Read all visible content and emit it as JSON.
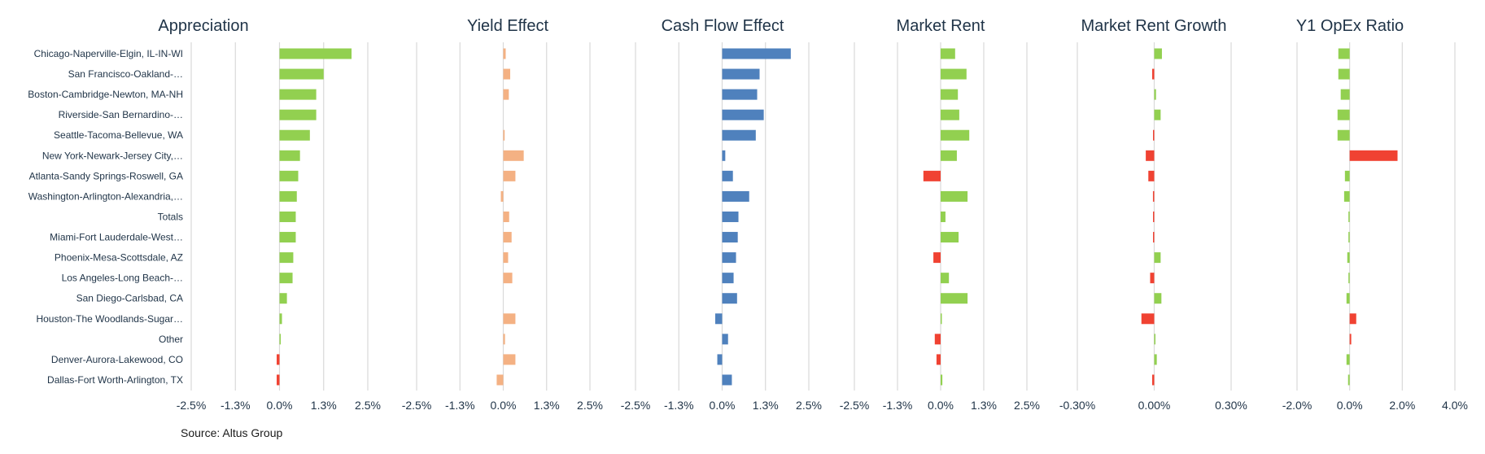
{
  "chart_data": {
    "type": "bar",
    "orientation": "horizontal",
    "source": "Source: Altus Group",
    "categories": [
      "Chicago-Naperville-Elgin, IL-IN-WI",
      "San Francisco-Oakland-…",
      "Boston-Cambridge-Newton, MA-NH",
      "Riverside-San Bernardino-…",
      "Seattle-Tacoma-Bellevue, WA",
      "New York-Newark-Jersey City,…",
      "Atlanta-Sandy Springs-Roswell, GA",
      "Washington-Arlington-Alexandria,…",
      "Totals",
      "Miami-Fort Lauderdale-West…",
      "Phoenix-Mesa-Scottsdale, AZ",
      "Los Angeles-Long Beach-…",
      "San Diego-Carlsbad, CA",
      "Houston-The Woodlands-Sugar…",
      "Other",
      "Denver-Aurora-Lakewood, CO",
      "Dallas-Fort Worth-Arlington, TX"
    ],
    "colors": {
      "positive_green": "#92d050",
      "negative_red": "#f04232",
      "yield_orange": "#f4b183",
      "cashflow_blue": "#4f81bd",
      "gridline": "#d9d9d9",
      "text": "#1f3347"
    },
    "panels": [
      {
        "title": "Appreciation",
        "unit": "%",
        "xlim": [
          -2.5,
          2.5
        ],
        "ticks": [
          -2.5,
          -1.25,
          0,
          1.25,
          2.5
        ],
        "tick_labels": [
          "-2.5%",
          "-1.3%",
          "0.0%",
          "1.3%",
          "2.5%"
        ],
        "color_mode": "sign",
        "values": [
          2.04,
          1.25,
          1.04,
          1.04,
          0.86,
          0.58,
          0.53,
          0.49,
          0.46,
          0.46,
          0.39,
          0.37,
          0.21,
          0.07,
          0.03,
          -0.08,
          -0.08
        ]
      },
      {
        "title": "Yield Effect",
        "unit": "%",
        "xlim": [
          -2.5,
          2.5
        ],
        "ticks": [
          -2.5,
          -1.25,
          0,
          1.25,
          2.5
        ],
        "tick_labels": [
          "-2.5%",
          "-1.3%",
          "0.0%",
          "1.3%",
          "2.5%"
        ],
        "color_mode": "yield",
        "values": [
          0.07,
          0.2,
          0.16,
          0.0,
          0.04,
          0.59,
          0.35,
          -0.07,
          0.17,
          0.24,
          0.14,
          0.26,
          0.0,
          0.35,
          0.05,
          0.35,
          -0.19
        ]
      },
      {
        "title": "Cash Flow Effect",
        "unit": "%",
        "xlim": [
          -2.5,
          2.5
        ],
        "ticks": [
          -2.5,
          -1.25,
          0,
          1.25,
          2.5
        ],
        "tick_labels": [
          "-2.5%",
          "-1.3%",
          "0.0%",
          "1.3%",
          "2.5%"
        ],
        "color_mode": "cashflow",
        "values": [
          1.98,
          1.08,
          1.01,
          1.2,
          0.97,
          0.09,
          0.31,
          0.78,
          0.47,
          0.45,
          0.4,
          0.33,
          0.43,
          -0.2,
          0.17,
          -0.14,
          0.28
        ]
      },
      {
        "title": "Market Rent",
        "unit": "%",
        "xlim": [
          -2.5,
          2.5
        ],
        "ticks": [
          -2.5,
          -1.25,
          0,
          1.25,
          2.5
        ],
        "tick_labels": [
          "-2.5%",
          "-1.3%",
          "0.0%",
          "1.3%",
          "2.5%"
        ],
        "color_mode": "sign",
        "values": [
          0.42,
          0.75,
          0.5,
          0.54,
          0.83,
          0.47,
          -0.5,
          0.78,
          0.14,
          0.52,
          -0.21,
          0.24,
          0.78,
          0.02,
          -0.17,
          -0.12,
          0.05
        ]
      },
      {
        "title": "Market Rent Growth",
        "unit": "%",
        "xlim": [
          -0.3,
          0.3
        ],
        "ticks": [
          -0.3,
          0,
          0.3
        ],
        "tick_labels": [
          "-0.30%",
          "0.00%",
          "0.30%"
        ],
        "color_mode": "sign",
        "values": [
          0.03,
          -0.008,
          0.007,
          0.025,
          -0.002,
          -0.033,
          -0.023,
          -0.005,
          -0.002,
          -0.002,
          0.025,
          -0.016,
          0.028,
          -0.05,
          0.003,
          0.01,
          -0.008
        ]
      },
      {
        "title": "Y1 OpEx Ratio",
        "unit": "%",
        "xlim": [
          -2.0,
          4.0
        ],
        "ticks": [
          -2.0,
          0,
          2.0,
          4.0
        ],
        "tick_labels": [
          "-2.0%",
          "0.0%",
          "2.0%",
          "4.0%"
        ],
        "color_mode": "inverse_sign",
        "values": [
          -0.43,
          -0.43,
          -0.34,
          -0.46,
          -0.46,
          1.82,
          -0.18,
          -0.21,
          -0.04,
          -0.04,
          -0.09,
          -0.04,
          -0.12,
          0.25,
          0.06,
          -0.12,
          -0.06
        ]
      }
    ]
  }
}
